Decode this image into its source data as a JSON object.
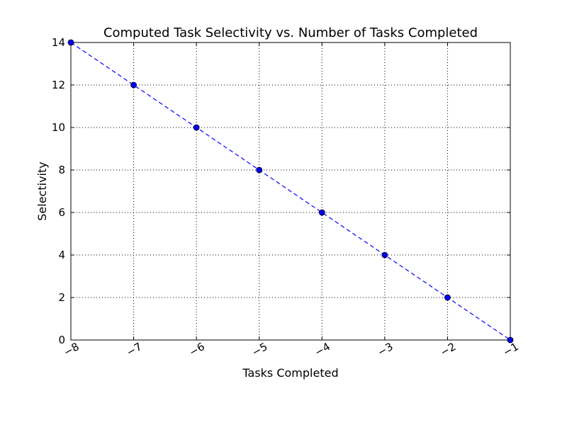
{
  "chart_data": {
    "type": "line",
    "title": "Computed Task Selectivity vs. Number of Tasks Completed",
    "xlabel": "Tasks Completed",
    "ylabel": "Selectivity",
    "xlim": [
      -8,
      -1
    ],
    "ylim": [
      0,
      14
    ],
    "x_ticks": [
      -8,
      -7,
      -6,
      -5,
      -4,
      -3,
      -2,
      -1
    ],
    "x_tick_labels": [
      "−8",
      "−7",
      "−6",
      "−5",
      "−4",
      "−3",
      "−2",
      "−1"
    ],
    "y_ticks": [
      0,
      2,
      4,
      6,
      8,
      10,
      12,
      14
    ],
    "y_tick_labels": [
      "0",
      "2",
      "4",
      "6",
      "8",
      "10",
      "12",
      "14"
    ],
    "grid": true,
    "legend": "none",
    "series": [
      {
        "x": [
          -8,
          -7,
          -6,
          -5,
          -4,
          -3,
          -2,
          -1
        ],
        "y": [
          14,
          12,
          10,
          8,
          6,
          4,
          2,
          0
        ],
        "color": "#0000ff",
        "line_style": "dashed",
        "marker": "circle"
      }
    ]
  }
}
